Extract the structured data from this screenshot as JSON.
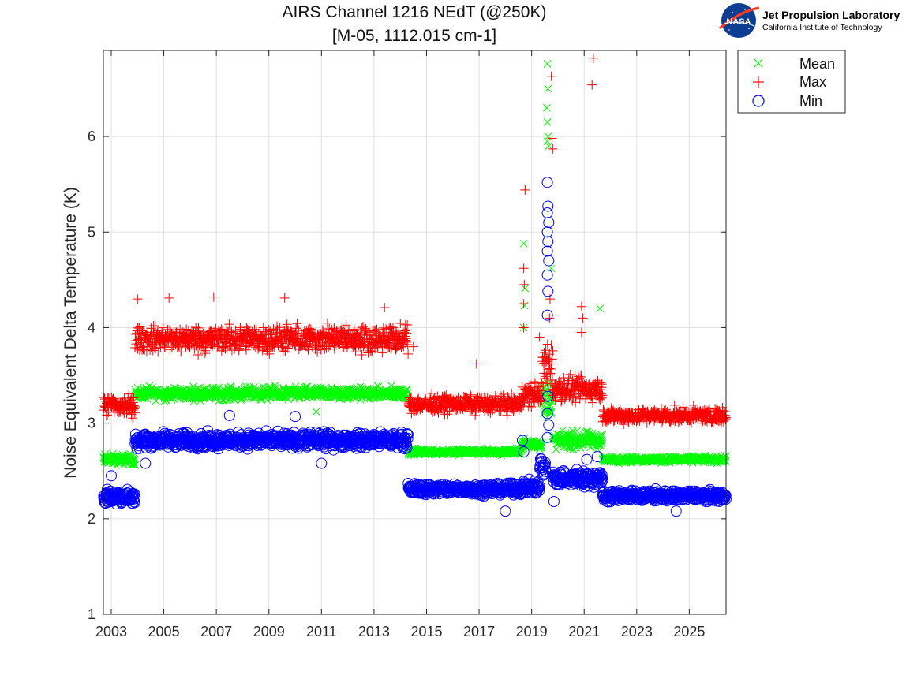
{
  "logo": {
    "badge_text": "NASA",
    "line1": "Jet Propulsion Laboratory",
    "line2": "California Institute of Technology"
  },
  "chart_data": {
    "type": "scatter",
    "title": "AIRS Channel 1216 NEdT (@250K)",
    "subtitle": "[M-05, 1112.015 cm-1]",
    "xlabel": "",
    "ylabel": "Noise Equivalent Delta Temperature (K)",
    "xlim": [
      2002.7,
      2026.4
    ],
    "ylim": [
      1,
      6.9
    ],
    "x_ticks": [
      2003,
      2005,
      2007,
      2009,
      2011,
      2013,
      2015,
      2017,
      2019,
      2021,
      2023,
      2025
    ],
    "x_tick_labels": [
      "2003",
      "2005",
      "2007",
      "2009",
      "2011",
      "2013",
      "2015",
      "2017",
      "2019",
      "2021",
      "2023",
      "2025"
    ],
    "y_ticks": [
      1,
      2,
      3,
      4,
      5,
      6
    ],
    "y_tick_labels": [
      "1",
      "2",
      "3",
      "4",
      "5",
      "6"
    ],
    "grid": true,
    "legend_position": "outside-top-right",
    "series": [
      {
        "name": "Mean",
        "marker": "x",
        "color": "#00ff00",
        "segments": [
          {
            "x0": 2002.7,
            "x1": 2003.9,
            "y": 2.62,
            "spread": 0.05
          },
          {
            "x0": 2003.9,
            "x1": 2014.3,
            "y": 3.31,
            "spread": 0.06
          },
          {
            "x0": 2014.3,
            "x1": 2018.6,
            "y": 2.7,
            "spread": 0.03
          },
          {
            "x0": 2018.6,
            "x1": 2019.4,
            "y": 2.78,
            "spread": 0.05
          },
          {
            "x0": 2019.4,
            "x1": 2019.8,
            "y": 3.25,
            "spread": 0.2
          },
          {
            "x0": 2019.8,
            "x1": 2021.7,
            "y": 2.82,
            "spread": 0.08
          },
          {
            "x0": 2021.7,
            "x1": 2026.4,
            "y": 2.62,
            "spread": 0.03
          }
        ],
        "outliers": [
          {
            "x": 2018.7,
            "y": 4.88
          },
          {
            "x": 2018.75,
            "y": 4.41
          },
          {
            "x": 2018.72,
            "y": 4.23
          },
          {
            "x": 2018.7,
            "y": 4.0
          },
          {
            "x": 2019.6,
            "y": 6.76
          },
          {
            "x": 2019.62,
            "y": 6.5
          },
          {
            "x": 2019.58,
            "y": 6.3
          },
          {
            "x": 2019.6,
            "y": 6.15
          },
          {
            "x": 2019.63,
            "y": 6.0
          },
          {
            "x": 2019.6,
            "y": 5.95
          },
          {
            "x": 2019.65,
            "y": 5.9
          },
          {
            "x": 2019.75,
            "y": 4.62
          },
          {
            "x": 2021.6,
            "y": 4.2
          },
          {
            "x": 2010.8,
            "y": 3.12
          }
        ]
      },
      {
        "name": "Max",
        "marker": "+",
        "color": "#ff0000",
        "segments": [
          {
            "x0": 2002.7,
            "x1": 2003.9,
            "y": 3.18,
            "spread": 0.1
          },
          {
            "x0": 2003.9,
            "x1": 2014.3,
            "y": 3.88,
            "spread": 0.12
          },
          {
            "x0": 2014.3,
            "x1": 2018.6,
            "y": 3.2,
            "spread": 0.08
          },
          {
            "x0": 2018.6,
            "x1": 2019.4,
            "y": 3.3,
            "spread": 0.12
          },
          {
            "x0": 2019.4,
            "x1": 2019.8,
            "y": 3.6,
            "spread": 0.2
          },
          {
            "x0": 2019.8,
            "x1": 2021.7,
            "y": 3.35,
            "spread": 0.12
          },
          {
            "x0": 2021.7,
            "x1": 2026.4,
            "y": 3.08,
            "spread": 0.07
          }
        ],
        "outliers": [
          {
            "x": 2018.75,
            "y": 5.44
          },
          {
            "x": 2018.7,
            "y": 4.62
          },
          {
            "x": 2018.72,
            "y": 4.45
          },
          {
            "x": 2018.7,
            "y": 4.25
          },
          {
            "x": 2018.7,
            "y": 4.0
          },
          {
            "x": 2019.75,
            "y": 6.63
          },
          {
            "x": 2019.78,
            "y": 5.98
          },
          {
            "x": 2019.8,
            "y": 5.87
          },
          {
            "x": 2021.35,
            "y": 6.82
          },
          {
            "x": 2021.3,
            "y": 6.54
          },
          {
            "x": 2019.7,
            "y": 4.3
          },
          {
            "x": 2019.68,
            "y": 4.1
          },
          {
            "x": 2020.9,
            "y": 4.22
          },
          {
            "x": 2020.95,
            "y": 4.1
          },
          {
            "x": 2020.9,
            "y": 3.95
          },
          {
            "x": 2004.0,
            "y": 4.3
          },
          {
            "x": 2005.2,
            "y": 4.31
          },
          {
            "x": 2006.9,
            "y": 4.32
          },
          {
            "x": 2009.6,
            "y": 4.31
          },
          {
            "x": 2013.4,
            "y": 4.21
          },
          {
            "x": 2014.5,
            "y": 3.8
          },
          {
            "x": 2016.9,
            "y": 3.62
          },
          {
            "x": 2019.3,
            "y": 3.9
          }
        ]
      },
      {
        "name": "Min",
        "marker": "o",
        "color": "#0000ff",
        "segments": [
          {
            "x0": 2002.7,
            "x1": 2003.9,
            "y": 2.23,
            "spread": 0.07
          },
          {
            "x0": 2003.9,
            "x1": 2014.3,
            "y": 2.82,
            "spread": 0.07
          },
          {
            "x0": 2014.3,
            "x1": 2018.6,
            "y": 2.31,
            "spread": 0.05
          },
          {
            "x0": 2018.6,
            "x1": 2019.3,
            "y": 2.33,
            "spread": 0.06
          },
          {
            "x0": 2019.3,
            "x1": 2019.55,
            "y": 2.55,
            "spread": 0.1
          },
          {
            "x0": 2019.8,
            "x1": 2021.7,
            "y": 2.42,
            "spread": 0.08
          },
          {
            "x0": 2021.7,
            "x1": 2026.4,
            "y": 2.24,
            "spread": 0.05
          }
        ],
        "outliers": [
          {
            "x": 2019.6,
            "y": 5.52
          },
          {
            "x": 2019.62,
            "y": 5.27
          },
          {
            "x": 2019.6,
            "y": 5.2
          },
          {
            "x": 2019.65,
            "y": 5.1
          },
          {
            "x": 2019.6,
            "y": 5.0
          },
          {
            "x": 2019.62,
            "y": 4.9
          },
          {
            "x": 2019.6,
            "y": 4.8
          },
          {
            "x": 2019.65,
            "y": 4.7
          },
          {
            "x": 2019.6,
            "y": 4.55
          },
          {
            "x": 2019.62,
            "y": 4.38
          },
          {
            "x": 2019.6,
            "y": 4.13
          },
          {
            "x": 2019.62,
            "y": 3.28
          },
          {
            "x": 2019.6,
            "y": 3.1
          },
          {
            "x": 2019.65,
            "y": 2.98
          },
          {
            "x": 2019.6,
            "y": 2.85
          },
          {
            "x": 2018.65,
            "y": 2.82
          },
          {
            "x": 2018.7,
            "y": 2.7
          },
          {
            "x": 2018.0,
            "y": 2.08
          },
          {
            "x": 2003.0,
            "y": 2.45
          },
          {
            "x": 2004.3,
            "y": 2.58
          },
          {
            "x": 2007.5,
            "y": 3.08
          },
          {
            "x": 2010.0,
            "y": 3.07
          },
          {
            "x": 2011.0,
            "y": 2.58
          },
          {
            "x": 2021.1,
            "y": 2.62
          },
          {
            "x": 2021.5,
            "y": 2.65
          },
          {
            "x": 2024.5,
            "y": 2.08
          },
          {
            "x": 2019.85,
            "y": 2.18
          }
        ]
      }
    ]
  }
}
